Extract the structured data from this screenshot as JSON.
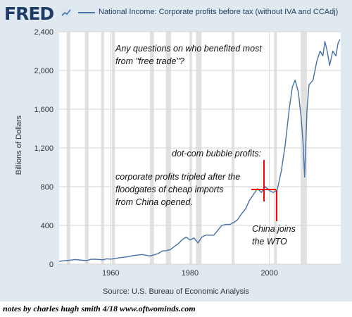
{
  "header": {
    "logo": "FRED",
    "logo_icon": "line-chart-icon",
    "series_label": "National Income: Corporate profits before tax (without IVA and CCAdj)"
  },
  "source": "Source: U.S. Bureau of Economic Analysis",
  "notes": "notes by charles hugh smith 4/18  www.oftwominds.com",
  "colors": {
    "background": "#e1e9f0",
    "plot_area": "#ffffff",
    "series_line": "#4572a7",
    "recession_band": "#e1e1e1",
    "annotation_marker": "#ff0000",
    "logo": "#1f3d64"
  },
  "chart_data": {
    "type": "line",
    "title": "National Income: Corporate profits before tax (without IVA and CCAdj)",
    "ylabel": "Billions of Dollars",
    "xlabel": "",
    "xlim": [
      1947,
      2018
    ],
    "ylim": [
      0,
      2400
    ],
    "x_ticks": [
      1960,
      1980,
      2000
    ],
    "y_ticks": [
      0,
      400,
      800,
      1200,
      1600,
      2000,
      2400
    ],
    "y_tick_labels": [
      "0",
      "400",
      "800",
      "1,200",
      "1,600",
      "2,000",
      "2,400"
    ],
    "grid": true,
    "recessions": [
      [
        1948.9,
        1949.8
      ],
      [
        1953.5,
        1954.4
      ],
      [
        1957.6,
        1958.3
      ],
      [
        1960.3,
        1961.1
      ],
      [
        1969.9,
        1970.9
      ],
      [
        1973.9,
        1975.2
      ],
      [
        1980.0,
        1980.5
      ],
      [
        1981.5,
        1982.9
      ],
      [
        1990.5,
        1991.2
      ],
      [
        2001.2,
        2001.9
      ],
      [
        2007.9,
        2009.5
      ]
    ],
    "series": [
      {
        "x": [
          1947,
          1948,
          1950,
          1951,
          1953,
          1954,
          1955,
          1956,
          1958,
          1959,
          1960,
          1962,
          1964,
          1966,
          1968,
          1969,
          1970,
          1972,
          1973,
          1974,
          1975,
          1977,
          1978,
          1979,
          1980,
          1981,
          1982,
          1983,
          1984,
          1985,
          1986,
          1987,
          1988,
          1989,
          1990,
          1991,
          1992,
          1993,
          1994,
          1995,
          1996,
          1997,
          1998,
          1999,
          2000,
          2001,
          2002,
          2003,
          2004,
          2005,
          2005.8,
          2006.5,
          2007.3,
          2008,
          2008.5,
          2008.9,
          2009.5,
          2010,
          2011,
          2012,
          2012.8,
          2013.5,
          2014,
          2014.6,
          2015.2,
          2016,
          2016.8,
          2017.3,
          2017.8
        ],
        "y": [
          28,
          35,
          42,
          48,
          40,
          38,
          50,
          52,
          45,
          55,
          52,
          65,
          75,
          90,
          100,
          92,
          85,
          110,
          135,
          140,
          150,
          210,
          250,
          280,
          250,
          270,
          220,
          280,
          300,
          300,
          300,
          350,
          400,
          410,
          410,
          430,
          460,
          520,
          570,
          660,
          720,
          780,
          740,
          800,
          760,
          740,
          770,
          960,
          1230,
          1600,
          1830,
          1900,
          1780,
          1520,
          1250,
          900,
          1600,
          1850,
          1900,
          2100,
          2200,
          2150,
          2300,
          2200,
          2050,
          2200,
          2150,
          2280,
          2320
        ]
      }
    ],
    "annotations": [
      "Any questions on who benefited most",
      "from \"free trade\"?",
      "dot-com bubble profits:",
      "corporate profits tripled after the",
      "floodgates of cheap imports",
      "from China opened.",
      "China joins",
      "the WTO"
    ]
  }
}
